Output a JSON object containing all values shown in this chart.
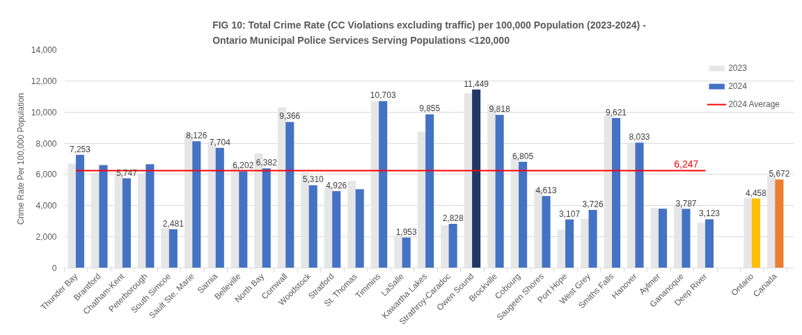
{
  "chart_data": {
    "type": "bar",
    "title": "FIG 10: Total Crime Rate (CC Violations excluding traffic) per 100,000 Population (2023-2024) - Ontario Municipal Police Services Serving Populations <120,000",
    "ylabel": "Crime Rate Per 100,000 Population",
    "categories": [
      "Thunder Bay",
      "Brantford",
      "Chatham-Kent",
      "Peterborough",
      "South Simcoe",
      "Sault Ste. Marie",
      "Sarnia",
      "Belleville",
      "North Bay",
      "Cornwall",
      "Woodstock",
      "Stratford",
      "St. Thomas",
      "Timmins",
      "LaSalle",
      "Kawartha Lakes",
      "Strathroy-Caradoc",
      "Owen Sound",
      "Brockville",
      "Cobourg",
      "Saugeen Shores",
      "Port Hope",
      "West Grey",
      "Smiths Falls",
      "Hanover",
      "Aylmer",
      "Gananoque",
      "Deep River",
      null,
      "Ontario",
      "Canada"
    ],
    "series": [
      {
        "name": "2023",
        "color": "#e7e6e6",
        "values": [
          6700,
          6100,
          6000,
          6000,
          2550,
          8650,
          8100,
          6500,
          7350,
          10300,
          6150,
          5200,
          5600,
          10700,
          2100,
          8750,
          2750,
          11200,
          10500,
          7050,
          5050,
          2450,
          3150,
          9800,
          8050,
          3850,
          4100,
          2900,
          null,
          4500,
          5900
        ]
      },
      {
        "name": "2024",
        "color": "#4472c4",
        "colors": [
          "#4472c4",
          "#4472c4",
          "#4472c4",
          "#4472c4",
          "#4472c4",
          "#4472c4",
          "#4472c4",
          "#4472c4",
          "#4472c4",
          "#4472c4",
          "#4472c4",
          "#4472c4",
          "#4472c4",
          "#4472c4",
          "#4472c4",
          "#4472c4",
          "#4472c4",
          "#1f3864",
          "#4472c4",
          "#4472c4",
          "#4472c4",
          "#4472c4",
          "#4472c4",
          "#4472c4",
          "#4472c4",
          "#4472c4",
          "#4472c4",
          "#4472c4",
          "#4472c4",
          "#ffc000",
          "#ed7d31"
        ],
        "values": [
          7253,
          6600,
          5747,
          6650,
          2481,
          8126,
          7704,
          6202,
          6382,
          9366,
          5310,
          4926,
          5050,
          10703,
          1953,
          9855,
          2828,
          11449,
          9818,
          6805,
          4613,
          3107,
          3726,
          9621,
          8033,
          3800,
          3787,
          3123,
          null,
          4458,
          5672
        ],
        "value_labels": [
          "7,253",
          null,
          "5,747",
          null,
          "2,481",
          "8,126",
          "7,704",
          "6,202",
          "6,382",
          "9,366",
          "5,310",
          "4,926",
          null,
          "10,703",
          "1,953",
          "9,855",
          "2,828",
          "11,449",
          "9,818",
          "6,805",
          "4,613",
          "3,107",
          "3,726",
          "9,621",
          "8,033",
          null,
          "3,787",
          "3,123",
          null,
          "4,458",
          "5,672"
        ]
      },
      {
        "name": "2024 Average",
        "type": "line",
        "color": "#ff0000",
        "values": [
          6247,
          6247,
          6247,
          6247,
          6247,
          6247,
          6247,
          6247,
          6247,
          6247,
          6247,
          6247,
          6247,
          6247,
          6247,
          6247,
          6247,
          6247,
          6247,
          6247,
          6247,
          6247,
          6247,
          6247,
          6247,
          6247,
          6247,
          6247,
          null,
          null,
          null
        ],
        "value_labels": [
          null,
          null,
          null,
          null,
          null,
          null,
          null,
          null,
          null,
          null,
          null,
          null,
          null,
          null,
          null,
          null,
          null,
          null,
          null,
          null,
          null,
          null,
          null,
          null,
          null,
          null,
          null,
          "6,247",
          null,
          null,
          null
        ]
      }
    ],
    "ylim": [
      0,
      14000
    ],
    "yticks": [
      0,
      {
        "value": 2000,
        "label": "2,000"
      },
      {
        "value": 4000,
        "label": "4,000"
      },
      {
        "value": 6000,
        "label": "6,000"
      },
      {
        "value": 8000,
        "label": "8,000"
      },
      {
        "value": 10000,
        "label": "10,000"
      },
      {
        "value": 12000,
        "label": "12,000"
      },
      {
        "value": 14000,
        "label": "14,000"
      }
    ],
    "grid": "y",
    "legend": "top right"
  }
}
